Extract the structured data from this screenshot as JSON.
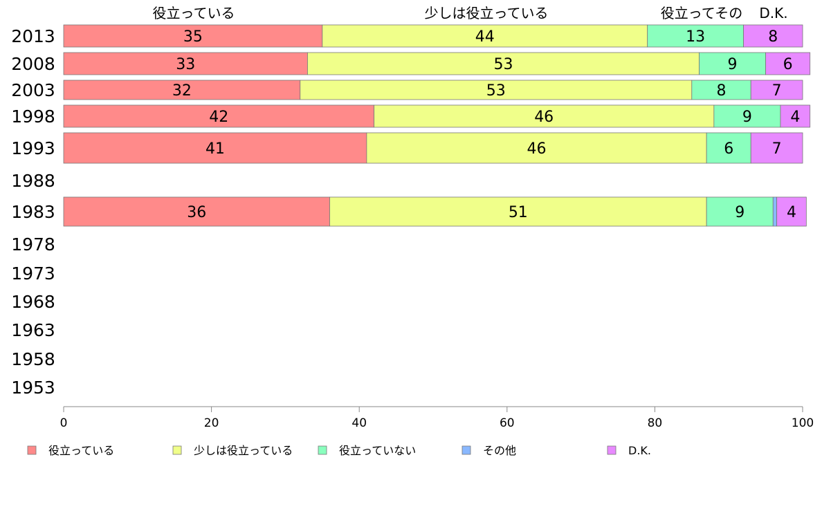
{
  "chart_data": {
    "type": "bar",
    "orientation": "horizontal",
    "stacked": true,
    "categories": [
      "2013",
      "2008",
      "2003",
      "1998",
      "1993",
      "1988",
      "1983",
      "1978",
      "1973",
      "1968",
      "1963",
      "1958",
      "1953"
    ],
    "series": [
      {
        "name": "役立っている",
        "color": "#ff8a8a",
        "values": [
          35,
          33,
          32,
          42,
          41,
          null,
          36,
          null,
          null,
          null,
          null,
          null,
          null
        ]
      },
      {
        "name": "少しは役立っている",
        "color": "#f0ff8a",
        "values": [
          44,
          53,
          53,
          46,
          46,
          null,
          51,
          null,
          null,
          null,
          null,
          null,
          null
        ]
      },
      {
        "name": "役立っていない",
        "color": "#8affbe",
        "values": [
          13,
          9,
          8,
          9,
          6,
          null,
          9,
          null,
          null,
          null,
          null,
          null,
          null
        ]
      },
      {
        "name": "その他",
        "color": "#8ab8ff",
        "values": [
          0,
          0,
          0,
          0,
          0,
          null,
          0.5,
          null,
          null,
          null,
          null,
          null,
          null
        ]
      },
      {
        "name": "D.K.",
        "color": "#e88aff",
        "values": [
          8,
          6,
          7,
          4,
          7,
          null,
          4,
          null,
          null,
          null,
          null,
          null,
          null
        ]
      }
    ],
    "data_labels": [
      [
        "35",
        "44",
        "13",
        null,
        "8"
      ],
      [
        "33",
        "53",
        "9",
        null,
        "6"
      ],
      [
        "32",
        "53",
        "8",
        null,
        "7"
      ],
      [
        "42",
        "46",
        "9",
        null,
        "4"
      ],
      [
        "41",
        "46",
        "6",
        null,
        "7"
      ],
      null,
      [
        "36",
        "51",
        "9",
        null,
        "4"
      ],
      null,
      null,
      null,
      null,
      null,
      null
    ],
    "header_labels": [
      "役立っている",
      "少しは役立っている",
      "役立ってその",
      "D.K."
    ],
    "xlim": [
      0,
      100
    ],
    "xticks": [
      0,
      20,
      40,
      60,
      80,
      100
    ],
    "legend_position": "bottom",
    "grid": false
  }
}
